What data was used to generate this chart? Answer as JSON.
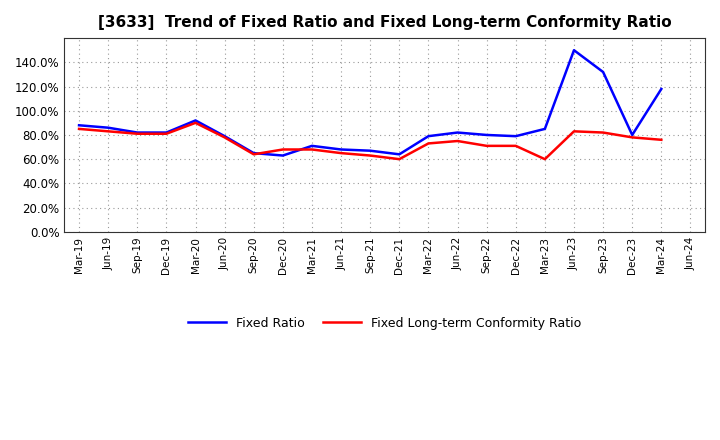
{
  "title": "[3633]  Trend of Fixed Ratio and Fixed Long-term Conformity Ratio",
  "labels": [
    "Mar-19",
    "Jun-19",
    "Sep-19",
    "Dec-19",
    "Mar-20",
    "Jun-20",
    "Sep-20",
    "Dec-20",
    "Mar-21",
    "Jun-21",
    "Sep-21",
    "Dec-21",
    "Mar-22",
    "Jun-22",
    "Sep-22",
    "Dec-22",
    "Mar-23",
    "Jun-23",
    "Sep-23",
    "Dec-23",
    "Mar-24",
    "Jun-24"
  ],
  "fixed_ratio": [
    88.0,
    86.0,
    82.0,
    82.0,
    92.0,
    79.0,
    65.0,
    63.0,
    71.0,
    68.0,
    67.0,
    64.0,
    79.0,
    82.0,
    80.0,
    79.0,
    85.0,
    150.0,
    132.0,
    80.0,
    118.0,
    null
  ],
  "fixed_lt_ratio": [
    85.0,
    83.0,
    81.0,
    81.0,
    90.0,
    78.0,
    64.0,
    68.0,
    68.0,
    65.0,
    63.0,
    60.0,
    73.0,
    75.0,
    71.0,
    71.0,
    60.0,
    83.0,
    82.0,
    78.0,
    76.0,
    null
  ],
  "fixed_ratio_color": "#0000FF",
  "fixed_lt_ratio_color": "#FF0000",
  "background_color": "#FFFFFF",
  "ylim": [
    0,
    160
  ],
  "yticks": [
    0,
    20,
    40,
    60,
    80,
    100,
    120,
    140
  ],
  "legend_fixed": "Fixed Ratio",
  "legend_fixed_lt": "Fixed Long-term Conformity Ratio"
}
